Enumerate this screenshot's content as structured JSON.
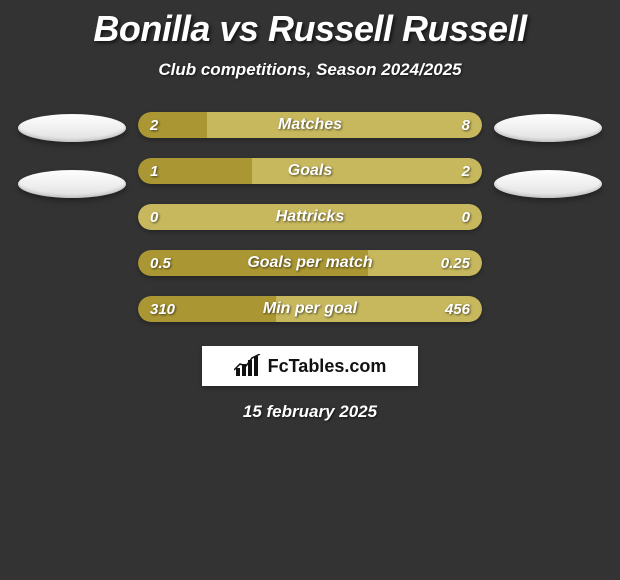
{
  "title": "Bonilla vs Russell Russell",
  "subtitle": "Club competitions, Season 2024/2025",
  "colors": {
    "background": "#333333",
    "player1_fill": "#aa9733",
    "player2_fill": "#c7b85e",
    "avatar1": "#ffffff",
    "avatar2": "#ffffff"
  },
  "stats": [
    {
      "label": "Matches",
      "left_value": "2",
      "right_value": "8",
      "left_pct": 20,
      "right_pct": 80
    },
    {
      "label": "Goals",
      "left_value": "1",
      "right_value": "2",
      "left_pct": 33,
      "right_pct": 67
    },
    {
      "label": "Hattricks",
      "left_value": "0",
      "right_value": "0",
      "left_pct": 100,
      "right_pct": 0,
      "full_fill": "player2_fill"
    },
    {
      "label": "Goals per match",
      "left_value": "0.5",
      "right_value": "0.25",
      "left_pct": 67,
      "right_pct": 33
    },
    {
      "label": "Min per goal",
      "left_value": "310",
      "right_value": "456",
      "left_pct": 40,
      "right_pct": 60
    }
  ],
  "branding_text": "FcTables.com",
  "date": "15 february 2025"
}
